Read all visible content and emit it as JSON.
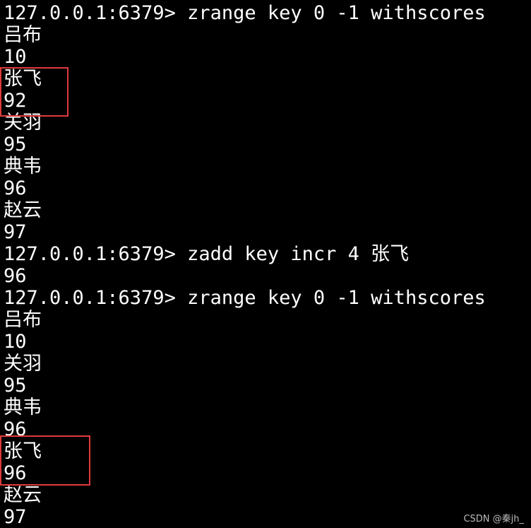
{
  "terminal": {
    "lines": [
      "127.0.0.1:6379> zrange key 0 -1 withscores",
      "吕布",
      "10",
      "张飞",
      "92",
      "关羽",
      "95",
      "典韦",
      "96",
      "赵云",
      "97",
      "127.0.0.1:6379> zadd key incr 4 张飞",
      "96",
      "127.0.0.1:6379> zrange key 0 -1 withscores",
      "吕布",
      "10",
      "关羽",
      "95",
      "典韦",
      "96",
      "张飞",
      "96",
      "赵云",
      "97"
    ]
  },
  "highlight_color": "#e03a3a",
  "watermark": "CSDN @秦jh_"
}
